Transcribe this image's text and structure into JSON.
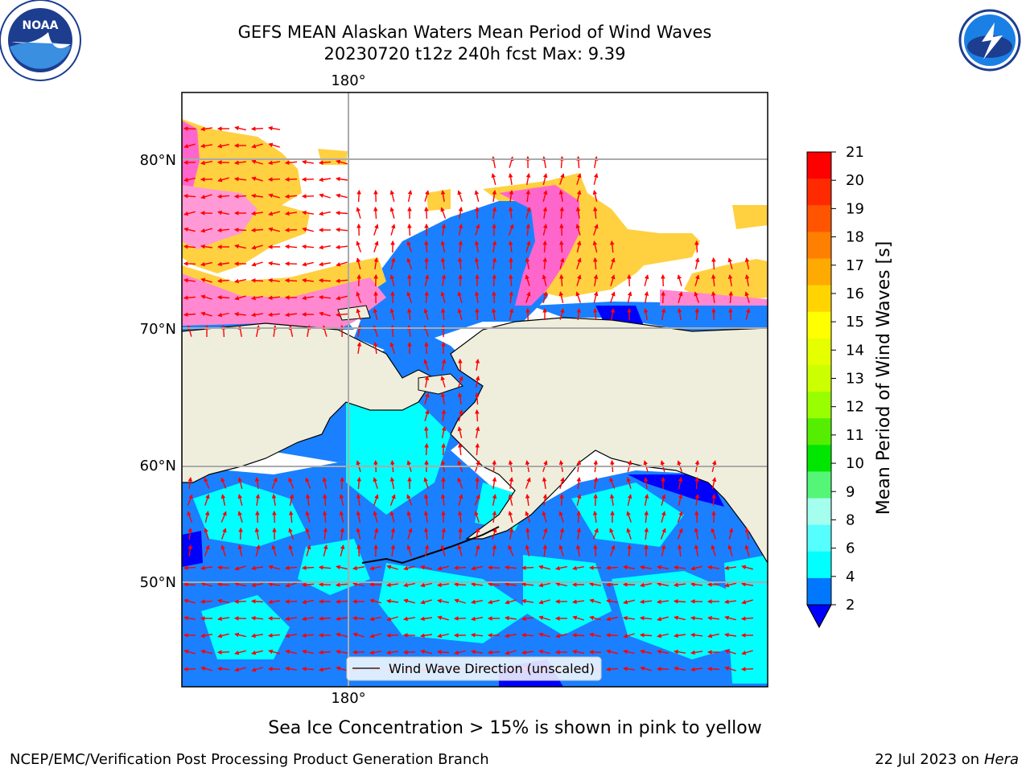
{
  "title": {
    "line1": "GEFS MEAN Alaskan Waters Mean Period of Wind Waves",
    "line2": "20230720 t12z 240h fcst   Max: 9.39"
  },
  "axis_labels": {
    "top_lon": "180°",
    "bottom_lon": "180°",
    "lat_80": "80°N",
    "lat_70": "70°N",
    "lat_60": "60°N",
    "lat_50": "50°N"
  },
  "legend": {
    "label": "Wind Wave Direction (unscaled)",
    "position": "bottom-center"
  },
  "colorbar": {
    "label": "Mean Period of Wind Waves [s]",
    "ticks": [
      "21",
      "20",
      "19",
      "18",
      "17",
      "16",
      "15",
      "14",
      "13",
      "12",
      "11",
      "10",
      "9",
      "8",
      "6",
      "4",
      "2"
    ],
    "colors": [
      "#ff0000",
      "#ff2a00",
      "#ff5500",
      "#ff7f00",
      "#ffaa00",
      "#ffd400",
      "#ffff00",
      "#e6ff00",
      "#ccff00",
      "#99ff00",
      "#55ee00",
      "#00e600",
      "#55f577",
      "#a5ffee",
      "#55ffff",
      "#00ffff",
      "#0077ff"
    ],
    "under_color": "#0000ff"
  },
  "caption": "Sea Ice Concentration > 15% is shown in pink to yellow",
  "footer": {
    "left": "NCEP/EMC/Verification Post Processing Product Generation Branch",
    "date": "22 Jul 2023 on ",
    "machine": "Hera"
  },
  "logos": {
    "noaa": {
      "text": "NOAA",
      "ring": "NATIONAL OCEANIC AND ATMOSPHERIC ADMINISTRATION · U.S. DEPARTMENT OF COMMERCE"
    },
    "nws": {
      "ring": "NATIONAL WEATHER SERVICE"
    }
  },
  "colors": {
    "ocean_blue": "#1a80ff",
    "cyan": "#00ffff",
    "land": "#efeedd",
    "arrow": "#ff0000",
    "ice_yellow": "#ffd040",
    "ice_pink": "#ff66cc"
  }
}
